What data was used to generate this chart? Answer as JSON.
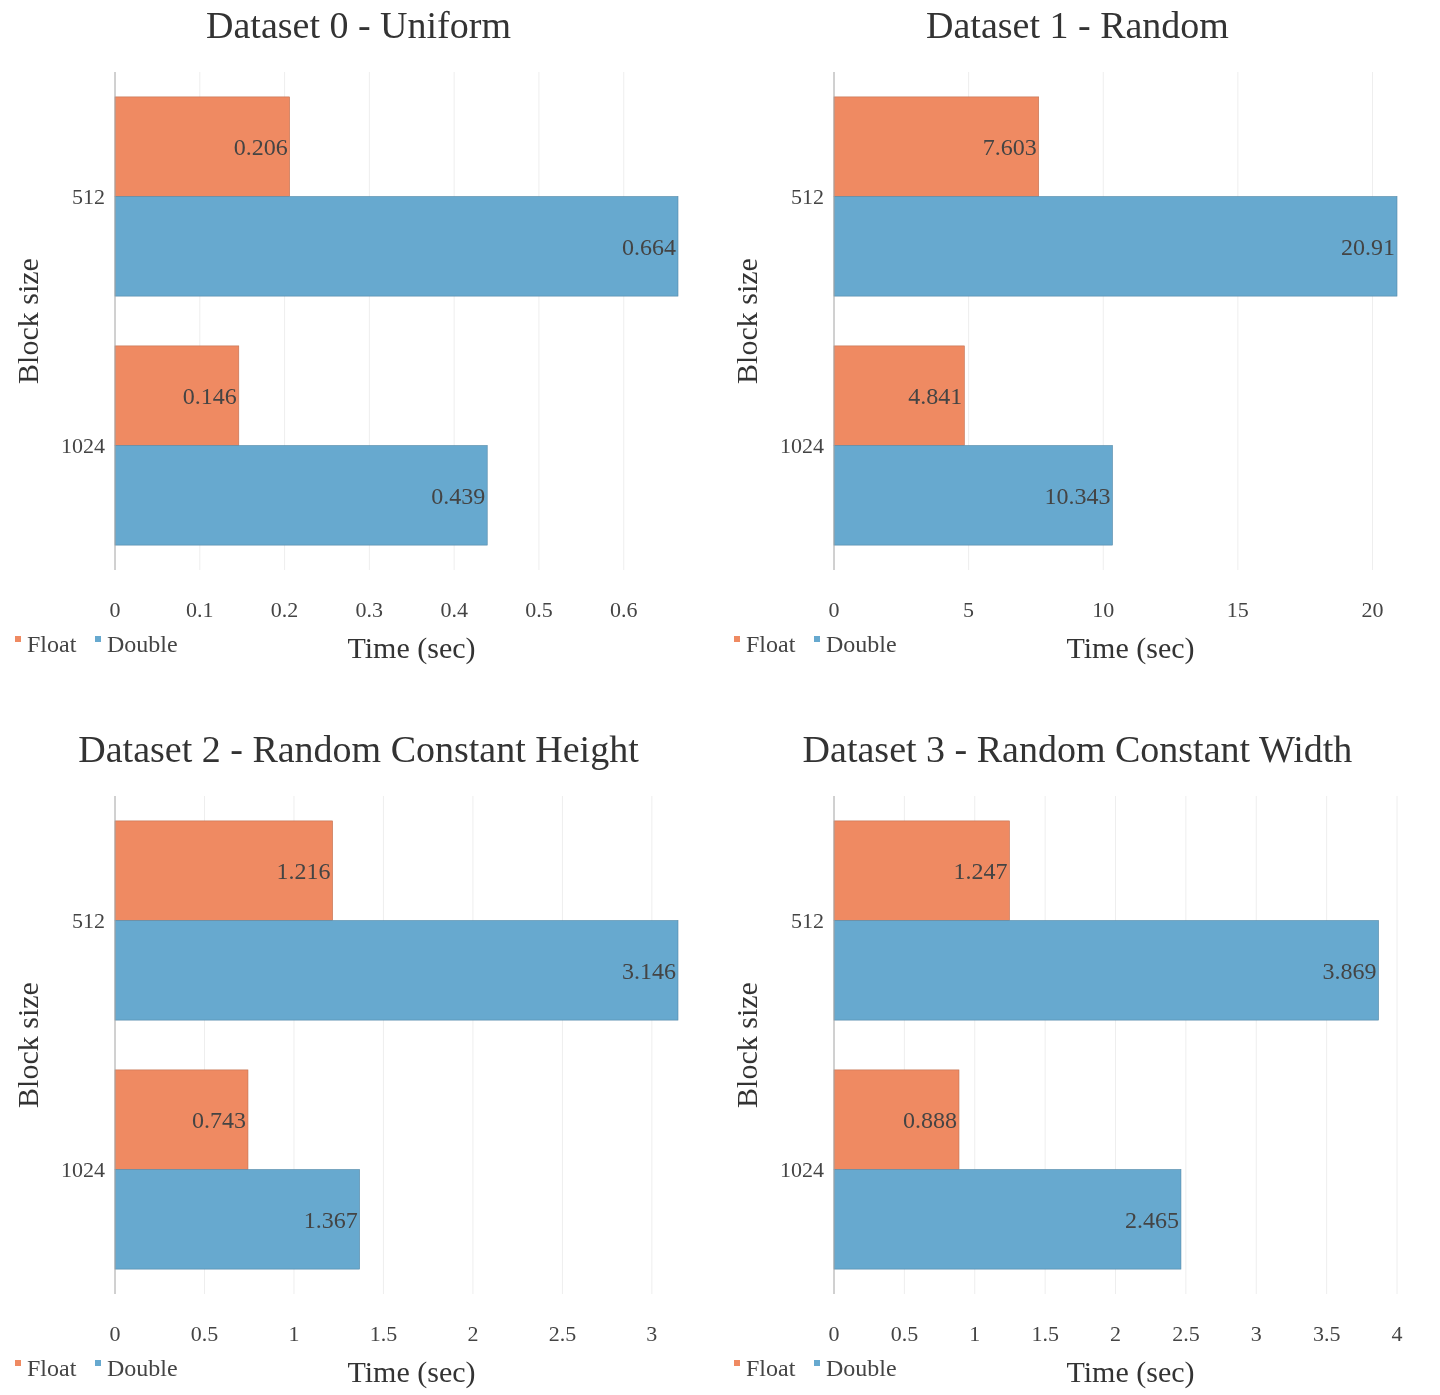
{
  "chart_data": [
    {
      "type": "bar",
      "orientation": "horizontal",
      "title": "Dataset 0 - Uniform",
      "xlabel": "Time (sec)",
      "ylabel": "Block size",
      "categories": [
        "512",
        "1024"
      ],
      "series": [
        {
          "name": "Float",
          "color": "#ef8a62",
          "values": [
            0.206,
            0.146
          ]
        },
        {
          "name": "Double",
          "color": "#67a9cf",
          "values": [
            0.664,
            0.439
          ]
        }
      ],
      "xlim": [
        0,
        0.664
      ],
      "xticks": [
        0,
        0.1,
        0.2,
        0.3,
        0.4,
        0.5,
        0.6
      ],
      "grid": "x",
      "legend": "bottom left",
      "data_labels": true
    },
    {
      "type": "bar",
      "orientation": "horizontal",
      "title": "Dataset 1 - Random",
      "xlabel": "Time (sec)",
      "ylabel": "Block size",
      "categories": [
        "512",
        "1024"
      ],
      "series": [
        {
          "name": "Float",
          "color": "#ef8a62",
          "values": [
            7.603,
            4.841
          ]
        },
        {
          "name": "Double",
          "color": "#67a9cf",
          "values": [
            20.91,
            10.343
          ]
        }
      ],
      "xlim": [
        0,
        20.91
      ],
      "xticks": [
        0,
        5,
        10,
        15,
        20
      ],
      "grid": "x",
      "legend": "bottom left",
      "data_labels": true
    },
    {
      "type": "bar",
      "orientation": "horizontal",
      "title": "Dataset 2 - Random Constant Height",
      "xlabel": "Time (sec)",
      "ylabel": "Block size",
      "categories": [
        "512",
        "1024"
      ],
      "series": [
        {
          "name": "Float",
          "color": "#ef8a62",
          "values": [
            1.216,
            0.743
          ]
        },
        {
          "name": "Double",
          "color": "#67a9cf",
          "values": [
            3.146,
            1.367
          ]
        }
      ],
      "xlim": [
        0,
        3.146
      ],
      "xticks": [
        0,
        0.5,
        1,
        1.5,
        2,
        2.5,
        3
      ],
      "grid": "x",
      "legend": "bottom left",
      "data_labels": true
    },
    {
      "type": "bar",
      "orientation": "horizontal",
      "title": "Dataset 3 - Random Constant Width",
      "xlabel": "Time (sec)",
      "ylabel": "Block size",
      "categories": [
        "512",
        "1024"
      ],
      "series": [
        {
          "name": "Float",
          "color": "#ef8a62",
          "values": [
            1.247,
            0.888
          ]
        },
        {
          "name": "Double",
          "color": "#67a9cf",
          "values": [
            3.869,
            2.465
          ]
        }
      ],
      "xlim": [
        0,
        4
      ],
      "xticks": [
        0,
        0.5,
        1,
        1.5,
        2,
        2.5,
        3,
        3.5,
        4
      ],
      "grid": "x",
      "legend": "bottom left",
      "data_labels": true
    }
  ]
}
